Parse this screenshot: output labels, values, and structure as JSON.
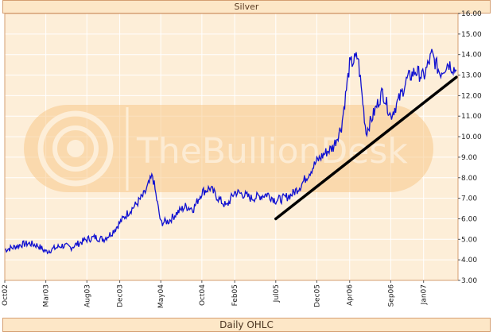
{
  "header": {
    "title": "Silver"
  },
  "footer": {
    "label": "Daily OHLC"
  },
  "watermark": {
    "text": "TheBullionDesk"
  },
  "colors": {
    "plot_background": "#fdeed8",
    "watermark": "#f7c98a",
    "series_line": "#1010d0",
    "trendline": "#000000",
    "frame": "#d59f72"
  },
  "chart_data": {
    "type": "line",
    "title": "Silver",
    "xlabel": "Daily OHLC",
    "ylabel": "",
    "ylim": [
      3.0,
      16.0
    ],
    "y_ticks": [
      "3.00",
      "4.00",
      "5.00",
      "6.00",
      "7.00",
      "8.00",
      "9.00",
      "10.00",
      "11.00",
      "12.00",
      "13.00",
      "14.00",
      "15.00",
      "16.00"
    ],
    "x_ticks": [
      "Oct02",
      "Mar03",
      "Aug03",
      "Dec03",
      "May04",
      "Oct04",
      "Feb05",
      "Jul05",
      "Dec05",
      "Apr06",
      "Sep06",
      "Jan07"
    ],
    "grid": true,
    "series": [
      {
        "x": [
          "2002-10",
          "2002-11",
          "2002-12",
          "2003-01",
          "2003-02",
          "2003-03",
          "2003-04",
          "2003-05",
          "2003-06",
          "2003-07",
          "2003-08",
          "2003-09",
          "2003-10",
          "2003-11",
          "2003-12",
          "2004-01",
          "2004-02",
          "2004-03",
          "2004-04",
          "2004-05",
          "2004-06",
          "2004-07",
          "2004-08",
          "2004-09",
          "2004-10",
          "2004-11",
          "2004-12",
          "2005-01",
          "2005-02",
          "2005-03",
          "2005-04",
          "2005-05",
          "2005-06",
          "2005-07",
          "2005-08",
          "2005-09",
          "2005-10",
          "2005-11",
          "2005-12",
          "2006-01",
          "2006-02",
          "2006-03",
          "2006-04",
          "2006-05",
          "2006-06",
          "2006-07",
          "2006-08",
          "2006-09",
          "2006-10",
          "2006-11",
          "2006-12",
          "2007-01",
          "2007-02",
          "2007-03",
          "2007-04",
          "2007-05"
        ],
        "values": [
          4.5,
          4.6,
          4.75,
          4.8,
          4.7,
          4.4,
          4.55,
          4.7,
          4.6,
          4.8,
          5.0,
          5.1,
          5.0,
          5.3,
          5.8,
          6.3,
          6.7,
          7.2,
          8.1,
          5.8,
          5.9,
          6.3,
          6.6,
          6.5,
          7.3,
          7.5,
          7.0,
          6.6,
          7.3,
          7.2,
          7.0,
          7.1,
          7.2,
          6.9,
          7.0,
          7.2,
          7.6,
          8.2,
          8.8,
          9.2,
          9.5,
          10.5,
          13.5,
          13.9,
          10.2,
          11.2,
          12.2,
          11.0,
          11.8,
          12.8,
          13.2,
          12.9,
          14.0,
          13.1,
          13.6,
          13.2
        ]
      },
      {
        "x": [
          "2005-07",
          "2007-05"
        ],
        "values": [
          6.0,
          12.9
        ]
      }
    ]
  }
}
